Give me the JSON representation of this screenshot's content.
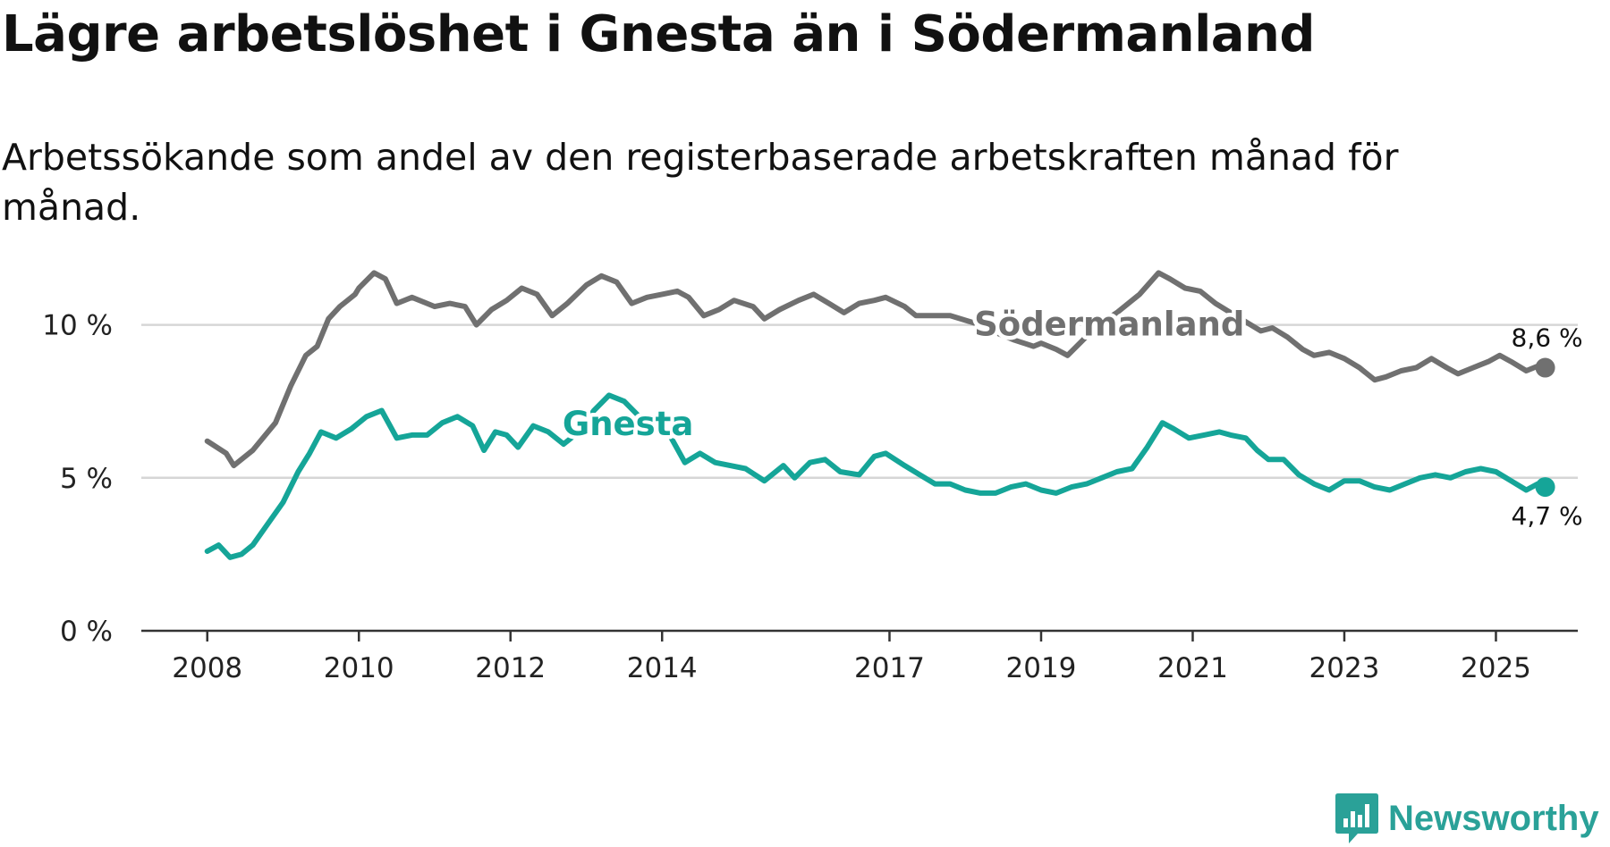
{
  "title": "Lägre arbetslöshet i Gnesta än i Södermanland",
  "subtitle": "Arbetssökande som andel av den registerbaserade arbetskraften månad för månad.",
  "logo": {
    "text": "Newsworthy",
    "icon": "newsworthy-bar-chart-icon",
    "color": "#2aa198"
  },
  "chart_data": {
    "type": "line",
    "title": "Lägre arbetslöshet i Gnesta än i Södermanland",
    "subtitle": "Arbetssökande som andel av den registerbaserade arbetskraften månad för månad.",
    "xlabel": "",
    "ylabel": "",
    "xlim": [
      2007.13,
      2026.08
    ],
    "ylim": [
      0,
      12.5
    ],
    "x_ticks": [
      2008,
      2010,
      2012,
      2014,
      2017,
      2019,
      2021,
      2023,
      2025
    ],
    "x_tick_labels": [
      "2008",
      "2010",
      "2012",
      "2014",
      "2017",
      "2019",
      "2021",
      "2023",
      "2025"
    ],
    "y_ticks": [
      0,
      5,
      10
    ],
    "y_tick_labels": [
      "0 %",
      "5 %",
      "10 %"
    ],
    "grid": true,
    "series": [
      {
        "name": "Södermanland",
        "color": "#707070",
        "end_label": "8,6 %",
        "points": [
          [
            2008.0,
            6.2
          ],
          [
            2008.25,
            5.8
          ],
          [
            2008.35,
            5.4
          ],
          [
            2008.6,
            5.9
          ],
          [
            2008.9,
            6.8
          ],
          [
            2009.1,
            8.0
          ],
          [
            2009.3,
            9.0
          ],
          [
            2009.45,
            9.3
          ],
          [
            2009.6,
            10.2
          ],
          [
            2009.75,
            10.6
          ],
          [
            2009.95,
            11.0
          ],
          [
            2010.0,
            11.2
          ],
          [
            2010.2,
            11.7
          ],
          [
            2010.35,
            11.5
          ],
          [
            2010.5,
            10.7
          ],
          [
            2010.7,
            10.9
          ],
          [
            2010.9,
            10.7
          ],
          [
            2011.0,
            10.6
          ],
          [
            2011.2,
            10.7
          ],
          [
            2011.4,
            10.6
          ],
          [
            2011.55,
            10.0
          ],
          [
            2011.75,
            10.5
          ],
          [
            2011.95,
            10.8
          ],
          [
            2012.15,
            11.2
          ],
          [
            2012.35,
            11.0
          ],
          [
            2012.55,
            10.3
          ],
          [
            2012.75,
            10.7
          ],
          [
            2013.0,
            11.3
          ],
          [
            2013.2,
            11.6
          ],
          [
            2013.4,
            11.4
          ],
          [
            2013.6,
            10.7
          ],
          [
            2013.8,
            10.9
          ],
          [
            2014.0,
            11.0
          ],
          [
            2014.2,
            11.1
          ],
          [
            2014.35,
            10.9
          ],
          [
            2014.55,
            10.3
          ],
          [
            2014.75,
            10.5
          ],
          [
            2014.95,
            10.8
          ],
          [
            2015.2,
            10.6
          ],
          [
            2015.35,
            10.2
          ],
          [
            2015.55,
            10.5
          ],
          [
            2015.8,
            10.8
          ],
          [
            2016.0,
            11.0
          ],
          [
            2016.2,
            10.7
          ],
          [
            2016.4,
            10.4
          ],
          [
            2016.6,
            10.7
          ],
          [
            2016.8,
            10.8
          ],
          [
            2016.95,
            10.9
          ],
          [
            2017.2,
            10.6
          ],
          [
            2017.35,
            10.3
          ],
          [
            2017.6,
            10.3
          ],
          [
            2017.8,
            10.3
          ],
          [
            2018.2,
            10.0
          ],
          [
            2018.45,
            9.7
          ],
          [
            2018.65,
            9.5
          ],
          [
            2018.9,
            9.3
          ],
          [
            2019.0,
            9.4
          ],
          [
            2019.2,
            9.2
          ],
          [
            2019.35,
            9.0
          ],
          [
            2019.55,
            9.5
          ],
          [
            2019.75,
            10.0
          ],
          [
            2020.0,
            10.4
          ],
          [
            2020.3,
            11.0
          ],
          [
            2020.55,
            11.7
          ],
          [
            2020.7,
            11.5
          ],
          [
            2020.9,
            11.2
          ],
          [
            2021.1,
            11.1
          ],
          [
            2021.3,
            10.7
          ],
          [
            2021.5,
            10.4
          ],
          [
            2021.7,
            10.1
          ],
          [
            2021.9,
            9.8
          ],
          [
            2022.05,
            9.9
          ],
          [
            2022.25,
            9.6
          ],
          [
            2022.45,
            9.2
          ],
          [
            2022.6,
            9.0
          ],
          [
            2022.8,
            9.1
          ],
          [
            2023.0,
            8.9
          ],
          [
            2023.2,
            8.6
          ],
          [
            2023.4,
            8.2
          ],
          [
            2023.55,
            8.3
          ],
          [
            2023.75,
            8.5
          ],
          [
            2023.95,
            8.6
          ],
          [
            2024.15,
            8.9
          ],
          [
            2024.35,
            8.6
          ],
          [
            2024.5,
            8.4
          ],
          [
            2024.7,
            8.6
          ],
          [
            2024.9,
            8.8
          ],
          [
            2025.05,
            9.0
          ],
          [
            2025.2,
            8.8
          ],
          [
            2025.4,
            8.5
          ],
          [
            2025.6,
            8.7
          ],
          [
            2025.65,
            8.6
          ]
        ]
      },
      {
        "name": "Gnesta",
        "color": "#15a598",
        "end_label": "4,7 %",
        "points": [
          [
            2008.0,
            2.6
          ],
          [
            2008.15,
            2.8
          ],
          [
            2008.3,
            2.4
          ],
          [
            2008.45,
            2.5
          ],
          [
            2008.6,
            2.8
          ],
          [
            2008.8,
            3.5
          ],
          [
            2009.0,
            4.2
          ],
          [
            2009.2,
            5.2
          ],
          [
            2009.35,
            5.8
          ],
          [
            2009.5,
            6.5
          ],
          [
            2009.7,
            6.3
          ],
          [
            2009.9,
            6.6
          ],
          [
            2010.1,
            7.0
          ],
          [
            2010.3,
            7.2
          ],
          [
            2010.5,
            6.3
          ],
          [
            2010.7,
            6.4
          ],
          [
            2010.9,
            6.4
          ],
          [
            2011.1,
            6.8
          ],
          [
            2011.3,
            7.0
          ],
          [
            2011.5,
            6.7
          ],
          [
            2011.65,
            5.9
          ],
          [
            2011.8,
            6.5
          ],
          [
            2011.95,
            6.4
          ],
          [
            2012.1,
            6.0
          ],
          [
            2012.3,
            6.7
          ],
          [
            2012.5,
            6.5
          ],
          [
            2012.7,
            6.1
          ],
          [
            2012.9,
            6.5
          ],
          [
            2013.1,
            7.2
          ],
          [
            2013.3,
            7.7
          ],
          [
            2013.5,
            7.5
          ],
          [
            2013.7,
            7.0
          ],
          [
            2013.9,
            6.6
          ],
          [
            2014.1,
            6.4
          ],
          [
            2014.3,
            5.5
          ],
          [
            2014.5,
            5.8
          ],
          [
            2014.7,
            5.5
          ],
          [
            2014.9,
            5.4
          ],
          [
            2015.1,
            5.3
          ],
          [
            2015.35,
            4.9
          ],
          [
            2015.6,
            5.4
          ],
          [
            2015.75,
            5.0
          ],
          [
            2015.95,
            5.5
          ],
          [
            2016.15,
            5.6
          ],
          [
            2016.35,
            5.2
          ],
          [
            2016.6,
            5.1
          ],
          [
            2016.8,
            5.7
          ],
          [
            2016.95,
            5.8
          ],
          [
            2017.2,
            5.4
          ],
          [
            2017.4,
            5.1
          ],
          [
            2017.6,
            4.8
          ],
          [
            2017.8,
            4.8
          ],
          [
            2018.0,
            4.6
          ],
          [
            2018.2,
            4.5
          ],
          [
            2018.4,
            4.5
          ],
          [
            2018.6,
            4.7
          ],
          [
            2018.8,
            4.8
          ],
          [
            2019.0,
            4.6
          ],
          [
            2019.2,
            4.5
          ],
          [
            2019.4,
            4.7
          ],
          [
            2019.6,
            4.8
          ],
          [
            2019.8,
            5.0
          ],
          [
            2020.0,
            5.2
          ],
          [
            2020.2,
            5.3
          ],
          [
            2020.4,
            6.0
          ],
          [
            2020.6,
            6.8
          ],
          [
            2020.75,
            6.6
          ],
          [
            2020.95,
            6.3
          ],
          [
            2021.15,
            6.4
          ],
          [
            2021.35,
            6.5
          ],
          [
            2021.5,
            6.4
          ],
          [
            2021.7,
            6.3
          ],
          [
            2021.85,
            5.9
          ],
          [
            2022.0,
            5.6
          ],
          [
            2022.2,
            5.6
          ],
          [
            2022.4,
            5.1
          ],
          [
            2022.6,
            4.8
          ],
          [
            2022.8,
            4.6
          ],
          [
            2023.0,
            4.9
          ],
          [
            2023.2,
            4.9
          ],
          [
            2023.4,
            4.7
          ],
          [
            2023.6,
            4.6
          ],
          [
            2023.8,
            4.8
          ],
          [
            2024.0,
            5.0
          ],
          [
            2024.2,
            5.1
          ],
          [
            2024.4,
            5.0
          ],
          [
            2024.6,
            5.2
          ],
          [
            2024.8,
            5.3
          ],
          [
            2025.0,
            5.2
          ],
          [
            2025.2,
            4.9
          ],
          [
            2025.4,
            4.6
          ],
          [
            2025.55,
            4.8
          ],
          [
            2025.65,
            4.7
          ]
        ]
      }
    ]
  }
}
